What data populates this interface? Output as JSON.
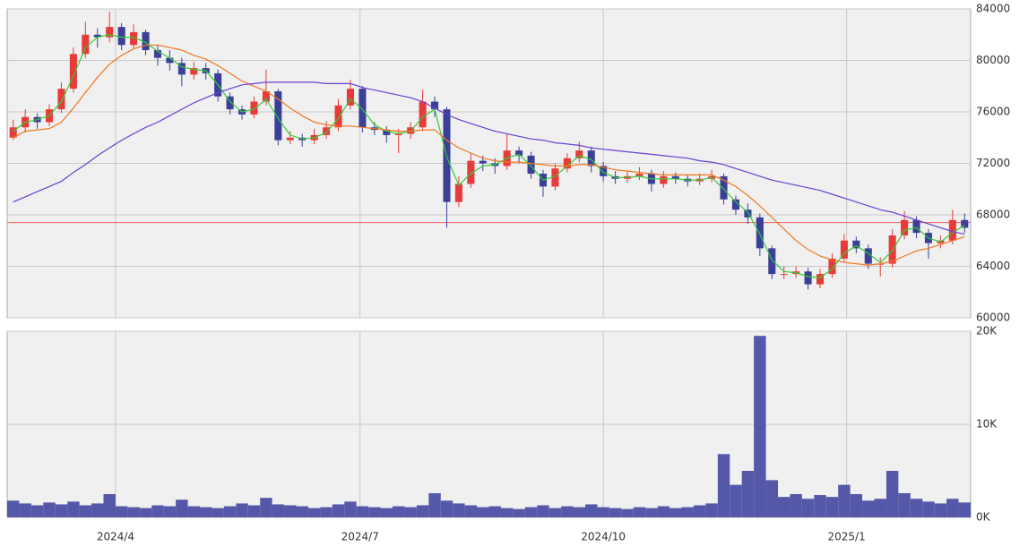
{
  "chart_data": {
    "type": "candlestick",
    "candles": [
      [
        74000,
        75400,
        73800,
        74800
      ],
      [
        74800,
        76200,
        74400,
        75600
      ],
      [
        75600,
        75900,
        74700,
        75200
      ],
      [
        75200,
        76600,
        74900,
        76200
      ],
      [
        76200,
        78300,
        75900,
        77800
      ],
      [
        77800,
        81000,
        77500,
        80500
      ],
      [
        80500,
        83000,
        80200,
        82000
      ],
      [
        82000,
        82500,
        81000,
        81800
      ],
      [
        81800,
        83800,
        81400,
        82600
      ],
      [
        82600,
        82900,
        80800,
        81200
      ],
      [
        81200,
        82800,
        80900,
        82200
      ],
      [
        82200,
        82400,
        80400,
        80800
      ],
      [
        80800,
        81200,
        79600,
        80200
      ],
      [
        80200,
        80800,
        79200,
        79800
      ],
      [
        79800,
        80200,
        78000,
        78900
      ],
      [
        78900,
        79900,
        78500,
        79400
      ],
      [
        79400,
        79800,
        78500,
        79000
      ],
      [
        79000,
        79300,
        76800,
        77200
      ],
      [
        77200,
        77500,
        75800,
        76200
      ],
      [
        76200,
        76500,
        75400,
        75800
      ],
      [
        75800,
        77200,
        75500,
        76800
      ],
      [
        76800,
        79300,
        76500,
        77600
      ],
      [
        77600,
        77800,
        73400,
        73800
      ],
      [
        73800,
        74500,
        73500,
        74000
      ],
      [
        74000,
        74300,
        73300,
        73800
      ],
      [
        73800,
        74700,
        73500,
        74200
      ],
      [
        74200,
        75300,
        73900,
        74800
      ],
      [
        74800,
        77000,
        74500,
        76500
      ],
      [
        76500,
        78500,
        76200,
        77800
      ],
      [
        77800,
        78000,
        74400,
        74800
      ],
      [
        74800,
        75200,
        74200,
        74600
      ],
      [
        74600,
        74900,
        73600,
        74200
      ],
      [
        74200,
        74700,
        72800,
        74300
      ],
      [
        74300,
        75200,
        73900,
        74800
      ],
      [
        74800,
        77700,
        74500,
        76800
      ],
      [
        76800,
        77200,
        75600,
        76200
      ],
      [
        76200,
        76400,
        67000,
        69000
      ],
      [
        69000,
        71000,
        68600,
        70400
      ],
      [
        70400,
        72800,
        70100,
        72200
      ],
      [
        72200,
        72600,
        71400,
        72000
      ],
      [
        72000,
        72400,
        71200,
        71800
      ],
      [
        71800,
        74300,
        71500,
        73000
      ],
      [
        73000,
        73300,
        72000,
        72600
      ],
      [
        72600,
        72900,
        70800,
        71200
      ],
      [
        71200,
        71500,
        69400,
        70200
      ],
      [
        70200,
        72000,
        69900,
        71600
      ],
      [
        71600,
        72800,
        71300,
        72400
      ],
      [
        72400,
        73700,
        72100,
        73000
      ],
      [
        73000,
        73300,
        71300,
        71800
      ],
      [
        71800,
        72100,
        70600,
        71000
      ],
      [
        71000,
        71400,
        70400,
        70800
      ],
      [
        70800,
        71400,
        70500,
        71000
      ],
      [
        71000,
        71700,
        70700,
        71200
      ],
      [
        71200,
        71500,
        69800,
        70400
      ],
      [
        70400,
        71400,
        70100,
        71000
      ],
      [
        71000,
        71300,
        70400,
        70800
      ],
      [
        70800,
        71100,
        70200,
        70600
      ],
      [
        70600,
        71200,
        70300,
        70800
      ],
      [
        70800,
        71500,
        70500,
        71000
      ],
      [
        71000,
        71200,
        68800,
        69200
      ],
      [
        69200,
        69500,
        68000,
        68400
      ],
      [
        68400,
        68900,
        67300,
        67800
      ],
      [
        67800,
        68100,
        64800,
        65400
      ],
      [
        65400,
        65600,
        63000,
        63400
      ],
      [
        63400,
        64000,
        63000,
        63400
      ],
      [
        63400,
        64000,
        63100,
        63600
      ],
      [
        63600,
        63900,
        62200,
        62600
      ],
      [
        62600,
        63800,
        62300,
        63400
      ],
      [
        63400,
        65000,
        63100,
        64600
      ],
      [
        64600,
        66500,
        64300,
        66000
      ],
      [
        66000,
        66300,
        65000,
        65400
      ],
      [
        65400,
        65700,
        63800,
        64200
      ],
      [
        64200,
        64700,
        63200,
        64200
      ],
      [
        64200,
        66900,
        63900,
        66400
      ],
      [
        66400,
        68300,
        66100,
        67600
      ],
      [
        67600,
        67900,
        66200,
        66600
      ],
      [
        66600,
        66900,
        64600,
        65800
      ],
      [
        65800,
        66400,
        65400,
        66000
      ],
      [
        66000,
        68400,
        65700,
        67600
      ],
      [
        67600,
        68100,
        66600,
        67000
      ]
    ],
    "up_color": "#e83a3a",
    "down_color": "#3b3f98",
    "moving_averages": [
      {
        "color": "#33cc33",
        "values": [
          74500,
          75200,
          75400,
          75700,
          76800,
          78800,
          81000,
          81800,
          82000,
          81800,
          81800,
          81400,
          80700,
          80200,
          79500,
          79300,
          79200,
          78100,
          76800,
          76000,
          76200,
          77000,
          75500,
          74200,
          73900,
          74000,
          74400,
          75500,
          77000,
          76200,
          75000,
          74500,
          74300,
          74500,
          75600,
          76200,
          72500,
          70300,
          71200,
          71800,
          71900,
          72400,
          72700,
          71800,
          70700,
          71000,
          71800,
          72600,
          72300,
          71300,
          70900,
          70900,
          71000,
          70800,
          70800,
          70800,
          70700,
          70700,
          70900,
          70000,
          69000,
          68200,
          66500,
          64500,
          63600,
          63500,
          63200,
          63100,
          63800,
          65000,
          65600,
          65000,
          64300,
          65200,
          66800,
          67000,
          66200,
          65900,
          66600,
          67200
        ]
      },
      {
        "color": "#f07820",
        "values": [
          74000,
          74500,
          74600,
          74700,
          75200,
          76300,
          77500,
          78700,
          79700,
          80400,
          80900,
          81200,
          81200,
          81000,
          80800,
          80400,
          80100,
          79600,
          79000,
          78400,
          78000,
          77600,
          77000,
          76300,
          75700,
          75200,
          75000,
          74900,
          74900,
          74800,
          74700,
          74600,
          74500,
          74500,
          74600,
          74600,
          73800,
          73200,
          72800,
          72400,
          72200,
          72100,
          72100,
          72000,
          71900,
          71800,
          71800,
          71900,
          71900,
          71700,
          71500,
          71400,
          71300,
          71200,
          71100,
          71100,
          71100,
          71100,
          71100,
          70700,
          70200,
          69500,
          68700,
          67800,
          66900,
          66000,
          65300,
          64800,
          64500,
          64300,
          64200,
          64100,
          64200,
          64400,
          64800,
          65200,
          65400,
          65700,
          66000,
          66300
        ]
      },
      {
        "color": "#6a3fd0",
        "values": [
          69000,
          69400,
          69800,
          70200,
          70600,
          71300,
          71900,
          72600,
          73200,
          73800,
          74300,
          74800,
          75200,
          75700,
          76200,
          76700,
          77100,
          77500,
          77800,
          78100,
          78200,
          78300,
          78300,
          78300,
          78300,
          78300,
          78200,
          78200,
          78200,
          77900,
          77700,
          77500,
          77300,
          77100,
          76800,
          76300,
          75800,
          75400,
          75100,
          74800,
          74500,
          74300,
          74100,
          73900,
          73800,
          73600,
          73500,
          73400,
          73200,
          73100,
          73000,
          72900,
          72800,
          72700,
          72600,
          72500,
          72400,
          72200,
          72100,
          71900,
          71600,
          71300,
          71000,
          70700,
          70500,
          70300,
          70100,
          69900,
          69600,
          69300,
          69000,
          68700,
          68400,
          68200,
          67900,
          67600,
          67300,
          67000,
          66700,
          66500
        ]
      }
    ],
    "reference_line": 67400,
    "reference_color": "#f06060",
    "volume": [
      1800,
      1500,
      1300,
      1600,
      1400,
      1700,
      1300,
      1500,
      2500,
      1200,
      1100,
      1000,
      1300,
      1200,
      1900,
      1200,
      1100,
      1000,
      1200,
      1500,
      1300,
      2100,
      1400,
      1300,
      1200,
      1000,
      1100,
      1400,
      1700,
      1200,
      1100,
      1000,
      1200,
      1100,
      1300,
      2600,
      1800,
      1500,
      1300,
      1100,
      1200,
      1000,
      900,
      1100,
      1300,
      1000,
      1200,
      1100,
      1400,
      1100,
      1000,
      900,
      1100,
      1000,
      1200,
      1000,
      1100,
      1300,
      1500,
      6800,
      3500,
      5000,
      19500,
      4000,
      2200,
      2500,
      2000,
      2400,
      2200,
      3500,
      2500,
      1800,
      2000,
      5000,
      2600,
      2000,
      1700,
      1500,
      2000,
      1600
    ],
    "volume_color": "#5558a8",
    "ylim": [
      60000,
      84000
    ],
    "yticks": [
      60000,
      64000,
      68000,
      72000,
      76000,
      80000,
      84000
    ],
    "vlim": [
      0,
      20000
    ],
    "vticks": [
      {
        "value": 0,
        "label": "0K"
      },
      {
        "value": 10000,
        "label": "10K"
      },
      {
        "value": 20000,
        "label": "20K"
      }
    ],
    "xticks": [
      {
        "value": 8.5,
        "label": "2024/4"
      },
      {
        "value": 28.8,
        "label": "2024/7"
      },
      {
        "value": 49,
        "label": "2024/10"
      },
      {
        "value": 69.2,
        "label": "2025/1"
      }
    ],
    "grid": true
  }
}
